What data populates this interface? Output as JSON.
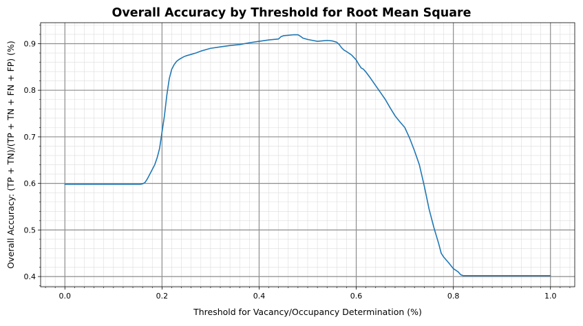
{
  "chart_data": {
    "type": "line",
    "title": "Overall Accuracy by Threshold for Root Mean Square",
    "xlabel": "Threshold for Vacancy/Occupancy Determination (%)",
    "ylabel": "Overall Accuracy: (TP + TN)/(TP + TN + FN + FP) (%)",
    "xlim": [
      -0.05,
      1.05
    ],
    "ylim": [
      0.378,
      0.945
    ],
    "x_ticks": [
      0.0,
      0.2,
      0.4,
      0.6,
      0.8,
      1.0
    ],
    "x_tick_labels": [
      "0.0",
      "0.2",
      "0.4",
      "0.6",
      "0.8",
      "1.0"
    ],
    "y_ticks": [
      0.4,
      0.5,
      0.6,
      0.7,
      0.8,
      0.9
    ],
    "y_tick_labels": [
      "0.4",
      "0.5",
      "0.6",
      "0.7",
      "0.8",
      "0.9"
    ],
    "x_minor_step": 0.02,
    "y_minor_step": 0.02,
    "grid": true,
    "line_color": "#1f77b4",
    "series": [
      {
        "x": [
          0.0,
          0.05,
          0.1,
          0.15,
          0.155,
          0.16,
          0.165,
          0.17,
          0.175,
          0.18,
          0.185,
          0.19,
          0.195,
          0.2,
          0.205,
          0.21,
          0.215,
          0.22,
          0.225,
          0.23,
          0.235,
          0.24,
          0.245,
          0.25,
          0.26,
          0.27,
          0.28,
          0.29,
          0.3,
          0.32,
          0.34,
          0.36,
          0.38,
          0.4,
          0.42,
          0.44,
          0.445,
          0.45,
          0.46,
          0.47,
          0.48,
          0.485,
          0.49,
          0.5,
          0.51,
          0.52,
          0.53,
          0.54,
          0.55,
          0.56,
          0.565,
          0.57,
          0.575,
          0.58,
          0.59,
          0.6,
          0.605,
          0.61,
          0.615,
          0.62,
          0.63,
          0.64,
          0.65,
          0.66,
          0.67,
          0.68,
          0.69,
          0.7,
          0.71,
          0.72,
          0.73,
          0.74,
          0.75,
          0.76,
          0.77,
          0.775,
          0.78,
          0.785,
          0.79,
          0.8,
          0.81,
          0.815,
          0.82,
          0.825,
          0.83,
          0.85,
          0.9,
          0.95,
          1.0
        ],
        "y": [
          0.598,
          0.598,
          0.598,
          0.598,
          0.598,
          0.599,
          0.602,
          0.61,
          0.62,
          0.63,
          0.64,
          0.655,
          0.675,
          0.71,
          0.745,
          0.79,
          0.825,
          0.845,
          0.855,
          0.862,
          0.866,
          0.869,
          0.872,
          0.874,
          0.877,
          0.88,
          0.884,
          0.887,
          0.89,
          0.893,
          0.896,
          0.898,
          0.902,
          0.905,
          0.908,
          0.91,
          0.915,
          0.917,
          0.918,
          0.919,
          0.919,
          0.916,
          0.912,
          0.909,
          0.907,
          0.905,
          0.906,
          0.907,
          0.906,
          0.903,
          0.898,
          0.891,
          0.886,
          0.883,
          0.876,
          0.865,
          0.856,
          0.848,
          0.845,
          0.839,
          0.825,
          0.81,
          0.795,
          0.78,
          0.762,
          0.745,
          0.732,
          0.72,
          0.697,
          0.67,
          0.64,
          0.595,
          0.545,
          0.505,
          0.47,
          0.45,
          0.442,
          0.436,
          0.43,
          0.417,
          0.41,
          0.404,
          0.402,
          0.402,
          0.402,
          0.402,
          0.402,
          0.402,
          0.402
        ]
      }
    ]
  }
}
